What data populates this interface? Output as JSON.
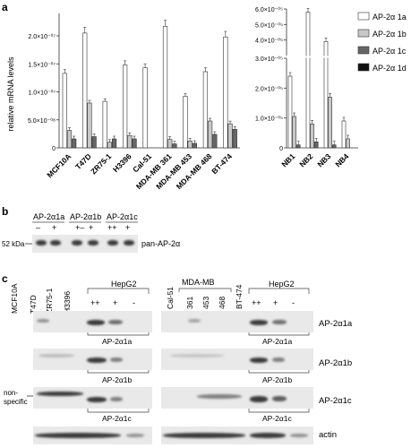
{
  "panel_labels": {
    "a": "a",
    "b": "b",
    "c": "c"
  },
  "chart_data": [
    {
      "type": "bar",
      "ylabel": "relative mRNA levels",
      "ylim": [
        0,
        2.4e-07
      ],
      "yticks": [
        {
          "v": 0,
          "label": "0"
        },
        {
          "v": 5e-08,
          "label": "5.0×10⁻⁰⁸"
        },
        {
          "v": 1e-07,
          "label": "1.0×10⁻⁰⁷"
        },
        {
          "v": 1.5e-07,
          "label": "1.5×10⁻⁰⁷"
        },
        {
          "v": 2e-07,
          "label": "2.0×10⁻⁰⁷"
        }
      ],
      "categories": [
        "MCF10A",
        "T47D",
        "ZR75-1",
        "H3396",
        "Cal-51",
        "MDA-MB 361",
        "MDA-MB 453",
        "MDA-MB 468",
        "BT-474"
      ],
      "series": [
        {
          "name": "AP-2α 1a",
          "color": "#ffffff",
          "values": [
            1.33e-07,
            2.05e-07,
            8.3e-08,
            1.48e-07,
            1.43e-07,
            2.17e-07,
            9.2e-08,
            1.36e-07,
            1.98e-07
          ]
        },
        {
          "name": "AP-2α 1b",
          "color": "#c8c8c8",
          "values": [
            3.1e-08,
            8e-08,
            1e-08,
            2.2e-08,
            0,
            1.5e-08,
            1.2e-08,
            4.8e-08,
            4.3e-08
          ]
        },
        {
          "name": "AP-2α 1c",
          "color": "#666666",
          "values": [
            1.6e-08,
            2e-08,
            1.6e-08,
            1.6e-08,
            0,
            7e-09,
            8e-09,
            2.4e-08,
            3.3e-08
          ]
        },
        {
          "name": "AP-2α 1d",
          "color": "#111111",
          "values": [
            0,
            0,
            0,
            0,
            0,
            0,
            0,
            0,
            0
          ]
        }
      ]
    },
    {
      "type": "bar",
      "ylim_lower": [
        0,
        3e-05
      ],
      "ylim_upper": [
        3e-05,
        6e-05
      ],
      "yticks": [
        {
          "v": 0,
          "label": "0"
        },
        {
          "v": 1e-05,
          "label": "1.0×10⁻⁰⁵"
        },
        {
          "v": 2e-05,
          "label": "2.0×10⁻⁰⁵"
        },
        {
          "v": 3e-05,
          "label": "3.0×10⁻⁰⁵"
        },
        {
          "v": 4e-05,
          "label": "4.0×10⁻⁰⁵"
        },
        {
          "v": 5e-05,
          "label": "5.0×10⁻⁰⁵"
        },
        {
          "v": 6e-05,
          "label": "6.0×10⁻⁰⁵"
        }
      ],
      "categories": [
        "NB1",
        "NB2",
        "NB3",
        "NB4"
      ],
      "series": [
        {
          "name": "AP-2α 1a",
          "color": "#ffffff",
          "values": [
            2.4e-05,
            5.8e-05,
            3.9e-05,
            9e-06
          ]
        },
        {
          "name": "AP-2α 1b",
          "color": "#c8c8c8",
          "values": [
            1.05e-05,
            8e-06,
            1.7e-05,
            3e-06
          ]
        },
        {
          "name": "AP-2α 1c",
          "color": "#666666",
          "values": [
            1e-06,
            2e-06,
            1e-06,
            0
          ]
        },
        {
          "name": "AP-2α 1d",
          "color": "#111111",
          "values": [
            0,
            0,
            0,
            0
          ]
        }
      ],
      "legend": "top-right"
    }
  ],
  "panel_b": {
    "groups": [
      "AP-2α1a",
      "AP-2α1b",
      "AP-2α1c"
    ],
    "signs": [
      "–",
      "+",
      "+–",
      "+",
      "++",
      "+"
    ],
    "marker": "52 kDa",
    "antibody": "pan-AP-2α"
  },
  "panel_c": {
    "left_lanes": [
      "MCF10A",
      "T47D",
      "ZR75-1",
      "H3396"
    ],
    "left_hepg2": "HepG2",
    "right_lanes": [
      "Cal-51",
      "361",
      "453",
      "468",
      "BT-474"
    ],
    "right_mda": "MDA-MB",
    "right_hepg2": "HepG2",
    "hep_signs": [
      "++",
      "+",
      "-"
    ],
    "rows": [
      {
        "label": "AP-2α1a",
        "bracket": "AP-2α1a"
      },
      {
        "label": "AP-2α1b",
        "bracket": "AP-2α1b"
      },
      {
        "label": "AP-2α1c",
        "bracket": "AP-2α1c"
      },
      {
        "label": "actin",
        "bracket": ""
      }
    ],
    "nonspecific": [
      "non-",
      "specific"
    ]
  }
}
